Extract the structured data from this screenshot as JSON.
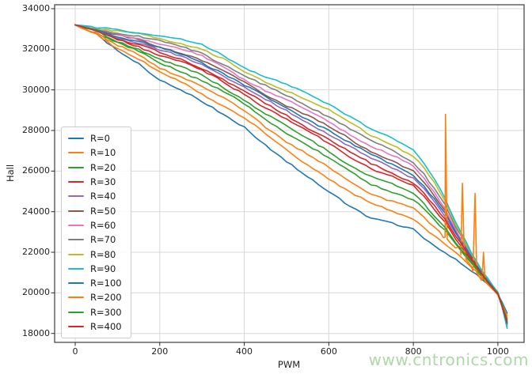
{
  "watermark": {
    "text": "www.cntronics.com",
    "color": "#aed8a8"
  },
  "chart_data": {
    "type": "line",
    "title": "",
    "xlabel": "PWM",
    "ylabel": "Hall",
    "xlim": [
      -48.7,
      1062
    ],
    "ylim": [
      17560,
      34195
    ],
    "xticks": [
      0,
      200,
      400,
      600,
      800,
      1000
    ],
    "yticks": [
      18000,
      20000,
      22000,
      24000,
      26000,
      28000,
      30000,
      32000,
      34000
    ],
    "grid": true,
    "grid_color": "#d8d8d8",
    "spine_color": "#3c3c3c",
    "legend_position": "lower-left-inside",
    "x": [
      0,
      50,
      100,
      150,
      200,
      250,
      300,
      350,
      400,
      450,
      500,
      550,
      600,
      650,
      700,
      750,
      800,
      825,
      850,
      875,
      900,
      925,
      950,
      975,
      1000,
      1010,
      1022
    ],
    "series": [
      {
        "name": "R=0",
        "color": "#1f77b4",
        "values": [
          33200,
          32700,
          31900,
          31300,
          30500,
          30000,
          29400,
          28800,
          28200,
          27300,
          26450,
          25700,
          25000,
          24300,
          23700,
          23400,
          23100,
          22700,
          22300,
          22000,
          21700,
          21300,
          20900,
          20400,
          19900,
          19500,
          19000
        ]
      },
      {
        "name": "R=10",
        "color": "#ff7f0e",
        "values": [
          33200,
          32750,
          32060,
          31530,
          30830,
          30380,
          29820,
          29240,
          28640,
          27800,
          27020,
          26320,
          25650,
          24960,
          24360,
          24030,
          23690,
          23260,
          22800,
          22410,
          21970,
          21480,
          20990,
          20450,
          19920,
          19470,
          18890
        ]
      },
      {
        "name": "R=20",
        "color": "#2ca02c",
        "values": [
          33200,
          32830,
          32300,
          31890,
          31340,
          30950,
          30460,
          29900,
          29300,
          28570,
          27890,
          27260,
          26630,
          25970,
          25370,
          25000,
          24580,
          24110,
          23550,
          23030,
          22380,
          21760,
          21130,
          20510,
          19940,
          19420,
          18720
        ]
      },
      {
        "name": "R=30",
        "color": "#d62728",
        "values": [
          33200,
          32890,
          32480,
          32150,
          31710,
          31380,
          30940,
          30400,
          29800,
          29140,
          28540,
          27960,
          27370,
          26720,
          26120,
          25710,
          25250,
          24740,
          24120,
          23490,
          22690,
          21960,
          21230,
          20570,
          19960,
          19390,
          18590
        ]
      },
      {
        "name": "R=40",
        "color": "#9467bd",
        "values": [
          33200,
          32930,
          32590,
          32320,
          31950,
          31650,
          31250,
          30710,
          30110,
          29510,
          28960,
          28410,
          27840,
          27200,
          26600,
          26170,
          25670,
          25140,
          24480,
          23780,
          22890,
          22090,
          21300,
          20600,
          19970,
          19370,
          18510
        ]
      },
      {
        "name": "R=50",
        "color": "#8c564b",
        "values": [
          33200,
          32960,
          32680,
          32450,
          32130,
          31850,
          31470,
          30950,
          30350,
          29780,
          29260,
          28730,
          28180,
          27560,
          26960,
          26510,
          25990,
          25440,
          24740,
          24000,
          23030,
          22190,
          21340,
          20620,
          19970,
          19350,
          18450
        ]
      },
      {
        "name": "R=60",
        "color": "#e377c2",
        "values": [
          33200,
          32980,
          32740,
          32540,
          32260,
          32000,
          31640,
          31120,
          30520,
          29980,
          29490,
          28980,
          28440,
          27820,
          27220,
          26760,
          26220,
          25660,
          24940,
          24160,
          23140,
          22260,
          21380,
          20640,
          19980,
          19340,
          18400
        ]
      },
      {
        "name": "R=70",
        "color": "#7f7f7f",
        "values": [
          33200,
          33000,
          32800,
          32630,
          32390,
          32150,
          31810,
          31290,
          30690,
          30180,
          29720,
          29230,
          28700,
          28080,
          27480,
          27010,
          26450,
          25880,
          25140,
          24320,
          23250,
          22330,
          21420,
          20660,
          19990,
          19330,
          18360
        ]
      },
      {
        "name": "R=80",
        "color": "#bcbd22",
        "values": [
          33200,
          33030,
          32880,
          32740,
          32550,
          32330,
          32000,
          31500,
          30900,
          30420,
          29980,
          29510,
          29000,
          28390,
          27790,
          27310,
          26730,
          26140,
          25370,
          24510,
          23370,
          22420,
          21460,
          20680,
          19990,
          19310,
          18300
        ]
      },
      {
        "name": "R=90",
        "color": "#17becf",
        "values": [
          33200,
          33050,
          32950,
          32850,
          32700,
          32500,
          32200,
          31700,
          31100,
          30650,
          30250,
          29800,
          29300,
          28700,
          28100,
          27600,
          27000,
          26400,
          25600,
          24700,
          23500,
          22500,
          21500,
          20700,
          20000,
          19300,
          18250
        ]
      },
      {
        "name": "R=100",
        "color": "#1f77b4",
        "values": [
          33200,
          32950,
          32640,
          32390,
          32040,
          31750,
          31360,
          30830,
          30230,
          29650,
          29110,
          28570,
          28010,
          27380,
          26780,
          26340,
          25830,
          25290,
          24610,
          23890,
          22960,
          22140,
          21320,
          20610,
          19970,
          19360,
          18480
        ]
      },
      {
        "name": "R=200",
        "color": "#ff7f0e",
        "values": [
          33200,
          32800,
          32180,
          31720,
          31090,
          30680,
          30160,
          29580,
          28980,
          28200,
          27480,
          26810,
          26160,
          25490,
          24890,
          24530,
          24150,
          23700,
          23190,
          22730,
          22190,
          21620,
          21060,
          20480,
          19930,
          19450,
          18800
        ],
        "spikes": [
          {
            "x": 876,
            "y": 28800,
            "base": 22720
          },
          {
            "x": 916,
            "y": 25400,
            "base": 22280
          },
          {
            "x": 946,
            "y": 24900,
            "base": 21050
          },
          {
            "x": 966,
            "y": 22000,
            "base": 20620
          }
        ]
      },
      {
        "name": "R=300",
        "color": "#2ca02c",
        "values": [
          33200,
          32860,
          32380,
          32010,
          31510,
          31150,
          30690,
          30130,
          29530,
          28840,
          28200,
          27590,
          26980,
          26320,
          25720,
          25330,
          24890,
          24400,
          23820,
          23240,
          22530,
          21850,
          21180,
          20540,
          19950,
          19410,
          18660
        ]
      },
      {
        "name": "R=400",
        "color": "#d62728",
        "values": [
          33200,
          32910,
          32530,
          32230,
          31820,
          31500,
          31080,
          30540,
          29940,
          29310,
          28730,
          28160,
          27580,
          26940,
          26340,
          25920,
          25440,
          24920,
          24280,
          23620,
          22780,
          22020,
          21260,
          20580,
          19960,
          19380,
          18550
        ]
      }
    ]
  }
}
